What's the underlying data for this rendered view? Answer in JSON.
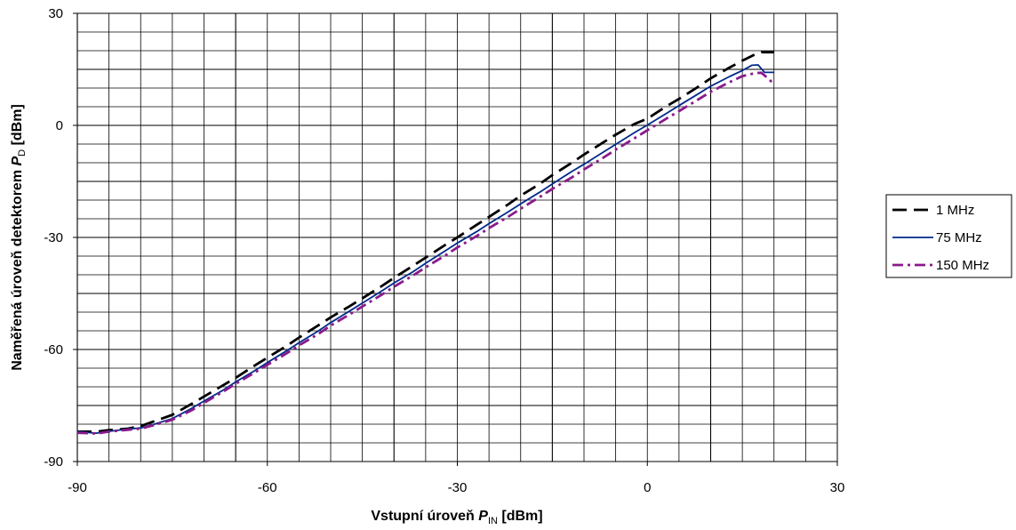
{
  "chart_data": {
    "type": "line",
    "title": "",
    "xlabel": {
      "pre": "Vstupní úroveň ",
      "var": "P",
      "sub": "IN",
      "post": " [dBm]"
    },
    "ylabel": {
      "pre": "Naměřená úroveň detektorem  ",
      "var": "P",
      "sub": "D",
      "post": " [dBm]"
    },
    "xlim": [
      -90,
      30
    ],
    "ylim": [
      -90,
      30
    ],
    "x_ticks": [
      "-90",
      "-60",
      "-30",
      "0",
      "30"
    ],
    "y_ticks": [
      "30",
      "0",
      "-30",
      "-60",
      "-90"
    ],
    "grid": true,
    "legend_position": "right",
    "series": [
      {
        "name": "1 MHz",
        "color": "#000000",
        "dash": "16,8",
        "width": 2.8,
        "x": [
          -90,
          -87,
          -85,
          -82,
          -80,
          -78,
          -75,
          -72,
          -70,
          -67,
          -65,
          -62,
          -60,
          -57,
          -55,
          -52,
          -50,
          -47,
          -45,
          -42,
          -40,
          -37,
          -35,
          -32,
          -30,
          -27,
          -25,
          -22,
          -20,
          -17,
          -15,
          -12,
          -10,
          -7,
          -5,
          -2,
          0,
          3,
          5,
          8,
          10,
          13,
          15,
          17,
          18,
          19,
          20
        ],
        "y": [
          -82,
          -82,
          -81.6,
          -81.2,
          -80.5,
          -79.3,
          -77.5,
          -74.6,
          -72.6,
          -69.6,
          -67.6,
          -64.3,
          -62.2,
          -59.1,
          -56.8,
          -53.6,
          -51.4,
          -48.4,
          -46.3,
          -43.1,
          -40.8,
          -37.6,
          -35.4,
          -32.1,
          -30,
          -26.7,
          -24.5,
          -21.2,
          -18.8,
          -15.7,
          -13.3,
          -10.1,
          -7.8,
          -4.6,
          -2.5,
          0.4,
          1.8,
          5.1,
          7.1,
          10.3,
          12.6,
          15.5,
          17.3,
          19,
          19.6,
          19.6,
          19.6
        ]
      },
      {
        "name": "75 MHz",
        "color": "#002a8a",
        "dash": "",
        "width": 1.8,
        "x": [
          -90,
          -87,
          -85,
          -82,
          -80,
          -78,
          -75,
          -72,
          -70,
          -67,
          -65,
          -62,
          -60,
          -57,
          -55,
          -52,
          -50,
          -47,
          -45,
          -42,
          -40,
          -37,
          -35,
          -32,
          -30,
          -27,
          -25,
          -22,
          -20,
          -17,
          -15,
          -12,
          -10,
          -7,
          -5,
          -2,
          0,
          3,
          5,
          8,
          10,
          13,
          15,
          16.5,
          17.5,
          18.5,
          20
        ],
        "y": [
          -82,
          -82.4,
          -81.9,
          -81.3,
          -81,
          -80.1,
          -78.5,
          -75.8,
          -73.8,
          -70.9,
          -68.7,
          -65.7,
          -63.5,
          -60.4,
          -58.2,
          -55.1,
          -52.8,
          -49.7,
          -47.6,
          -44.4,
          -42.2,
          -39.2,
          -36.9,
          -33.7,
          -31.5,
          -28.5,
          -26.3,
          -23.2,
          -21,
          -17.9,
          -15.7,
          -12.4,
          -10.4,
          -7.2,
          -5.1,
          -1.9,
          0.1,
          3.2,
          5.3,
          8.4,
          10.5,
          13.1,
          14.7,
          16.1,
          16.2,
          14.2,
          14.2
        ]
      },
      {
        "name": "150 MHz",
        "color": "#8a1a8c",
        "dash": "12,5,3,5",
        "width": 2.8,
        "x": [
          -90,
          -87,
          -85,
          -82,
          -80,
          -78,
          -75,
          -72,
          -70,
          -67,
          -65,
          -62,
          -60,
          -57,
          -55,
          -52,
          -50,
          -47,
          -45,
          -42,
          -40,
          -37,
          -35,
          -32,
          -30,
          -27,
          -25,
          -22,
          -20,
          -17,
          -15,
          -12,
          -10,
          -7,
          -5,
          -2,
          0,
          3,
          5,
          8,
          10,
          13,
          15,
          17,
          18,
          19,
          20
        ],
        "y": [
          -82.3,
          -82.5,
          -82,
          -81.5,
          -81.2,
          -80.3,
          -78.8,
          -76.3,
          -74.3,
          -71.3,
          -69.2,
          -66.2,
          -64.1,
          -61.1,
          -58.9,
          -55.9,
          -53.6,
          -50.6,
          -48.5,
          -45.4,
          -43.2,
          -40.2,
          -38,
          -34.9,
          -32.7,
          -29.7,
          -27.5,
          -24.5,
          -22.3,
          -19.2,
          -17,
          -14,
          -11.8,
          -8.7,
          -6.5,
          -3.4,
          -1.3,
          1.8,
          3.8,
          6.9,
          9,
          11.6,
          13.2,
          14,
          14.1,
          12.7,
          11
        ]
      }
    ]
  }
}
